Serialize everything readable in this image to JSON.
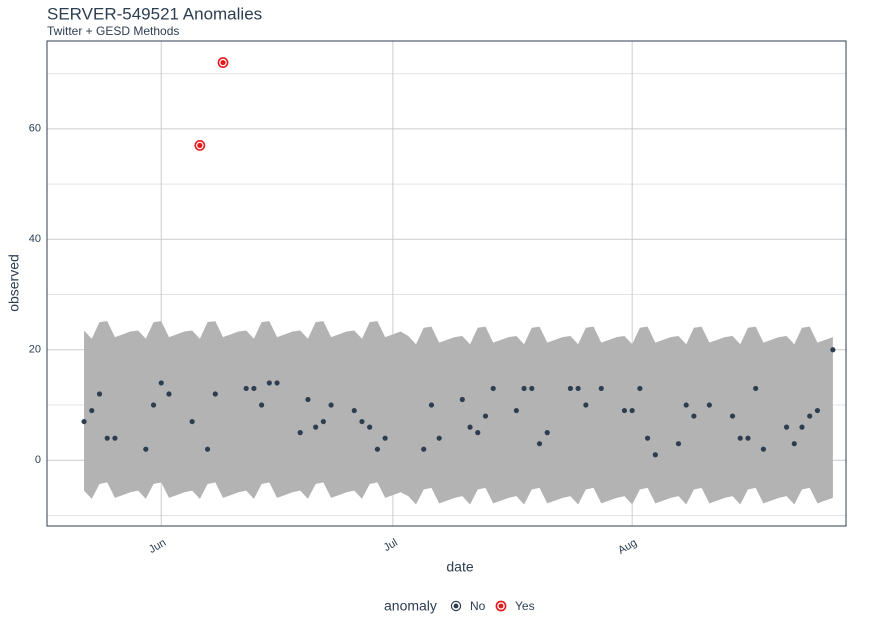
{
  "chart_data": {
    "type": "anomaly-scatter",
    "title": "SERVER-549521 Anomalies",
    "subtitle": "Twitter + GESD Methods",
    "x_label": "date",
    "y_label": "observed",
    "legend_title": "anomaly",
    "xlim": [
      -4.8,
      98.7
    ],
    "xticks": [
      {
        "value": 10,
        "label": "Jun"
      },
      {
        "value": 40,
        "label": "Jul"
      },
      {
        "value": 71,
        "label": "Aug"
      }
    ],
    "ylim": [
      -11.9,
      75.9
    ],
    "yticks": [
      0,
      20,
      40,
      60
    ],
    "yminor": [
      -10,
      10,
      30,
      50,
      70
    ],
    "grid": true,
    "band": {
      "color": "#b3b3b3",
      "x": [
        0,
        1,
        2,
        3,
        4,
        5,
        6,
        7,
        8,
        9,
        10,
        11,
        12,
        13,
        14,
        15,
        16,
        17,
        18,
        19,
        20,
        21,
        22,
        23,
        24,
        25,
        26,
        27,
        28,
        29,
        30,
        31,
        32,
        33,
        34,
        35,
        36,
        37,
        38,
        39,
        40,
        41,
        42,
        43,
        44,
        45,
        46,
        47,
        48,
        49,
        50,
        51,
        52,
        53,
        54,
        55,
        56,
        57,
        58,
        59,
        60,
        61,
        62,
        63,
        64,
        65,
        66,
        67,
        68,
        69,
        70,
        71,
        72,
        73,
        74,
        75,
        76,
        77,
        78,
        79,
        80,
        81,
        82,
        83,
        84,
        85,
        86,
        87,
        88,
        89,
        90,
        91,
        92,
        93,
        94,
        95,
        96,
        97
      ],
      "upper": [
        23.5,
        22,
        25,
        25.2,
        22.3,
        22.8,
        23.3,
        23.5,
        22,
        25,
        25.2,
        22.3,
        22.8,
        23.3,
        23.5,
        22,
        25,
        25.2,
        22.3,
        22.8,
        23.3,
        23.5,
        22,
        25,
        25.2,
        22.3,
        22.8,
        23.3,
        23.5,
        22,
        25,
        25.2,
        22.3,
        22.8,
        23.3,
        23.5,
        22,
        25,
        25.2,
        22.3,
        22.8,
        23.3,
        22.5,
        21,
        24,
        24.2,
        21.3,
        21.8,
        22.3,
        22.5,
        21,
        24,
        24.2,
        21.3,
        21.8,
        22.3,
        22.5,
        21,
        24,
        24.2,
        21.3,
        21.8,
        22.3,
        22.5,
        21,
        24,
        24.2,
        21.3,
        21.8,
        22.3,
        22.5,
        21,
        24,
        24.2,
        21.3,
        21.8,
        22.3,
        22.5,
        21,
        24,
        24.2,
        21.3,
        21.8,
        22.3,
        22.5,
        21,
        24,
        24.2,
        21.3,
        21.8,
        22.3,
        22.5,
        21,
        24,
        24.2,
        21.3,
        21.8,
        22.3
      ],
      "lower": [
        -5.5,
        -7,
        -4.3,
        -4,
        -6.8,
        -6.3,
        -5.8,
        -5.5,
        -7,
        -4.3,
        -4,
        -6.8,
        -6.3,
        -5.8,
        -5.5,
        -7,
        -4.3,
        -4,
        -6.8,
        -6.3,
        -5.8,
        -5.5,
        -7,
        -4.3,
        -4,
        -6.8,
        -6.3,
        -5.8,
        -5.5,
        -7,
        -4.3,
        -4,
        -6.8,
        -6.3,
        -5.8,
        -5.5,
        -7,
        -4.3,
        -4,
        -6.8,
        -6.3,
        -5.8,
        -6.5,
        -8,
        -5.3,
        -5,
        -7.8,
        -7.3,
        -6.8,
        -6.5,
        -8,
        -5.3,
        -5,
        -7.8,
        -7.3,
        -6.8,
        -6.5,
        -8,
        -5.3,
        -5,
        -7.8,
        -7.3,
        -6.8,
        -6.5,
        -8,
        -5.3,
        -5,
        -7.8,
        -7.3,
        -6.8,
        -6.5,
        -8,
        -5.3,
        -5,
        -7.8,
        -7.3,
        -6.8,
        -6.5,
        -8,
        -5.3,
        -5,
        -7.8,
        -7.3,
        -6.8,
        -6.5,
        -8,
        -5.3,
        -5,
        -7.8,
        -7.3,
        -6.8,
        -6.5,
        -8,
        -5.3,
        -5,
        -7.8,
        -7.3,
        -6.8
      ]
    },
    "series": [
      {
        "name": "No",
        "color": "#2c3e50",
        "marker": "dot",
        "x": [
          0,
          1,
          2,
          3,
          4,
          8,
          9,
          10,
          11,
          14,
          16,
          17,
          21,
          22,
          23,
          24,
          25,
          28,
          29,
          30,
          31,
          32,
          35,
          36,
          37,
          38,
          39,
          44,
          45,
          46,
          49,
          50,
          51,
          52,
          53,
          56,
          57,
          58,
          59,
          60,
          63,
          64,
          65,
          67,
          70,
          71,
          72,
          73,
          74,
          77,
          78,
          79,
          81,
          84,
          85,
          86,
          87,
          88,
          91,
          92,
          93,
          94,
          95,
          97
        ],
        "values": [
          7,
          9,
          12,
          4,
          4,
          2,
          10,
          14,
          12,
          7,
          2,
          12,
          13,
          13,
          10,
          14,
          14,
          5,
          11,
          6,
          7,
          10,
          9,
          7,
          6,
          2,
          4,
          2,
          10,
          4,
          11,
          6,
          5,
          8,
          13,
          9,
          13,
          13,
          3,
          5,
          13,
          13,
          10,
          13,
          9,
          9,
          13,
          4,
          1,
          3,
          10,
          8,
          10,
          8,
          4,
          4,
          13,
          2,
          6,
          3,
          6,
          8,
          9,
          20
        ]
      },
      {
        "name": "Yes",
        "color": "#e31a1c",
        "marker": "ring",
        "x": [
          15,
          18
        ],
        "values": [
          57,
          72
        ]
      }
    ]
  }
}
